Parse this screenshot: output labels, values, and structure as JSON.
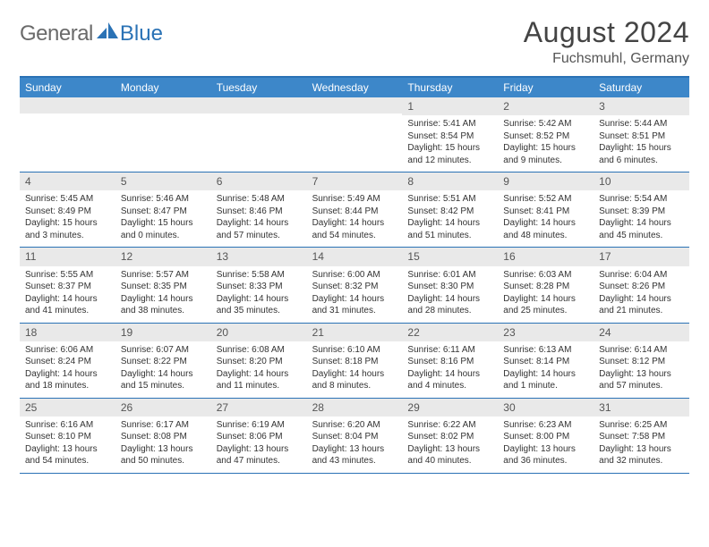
{
  "brand": {
    "part1": "General",
    "part2": "Blue"
  },
  "title": "August 2024",
  "location": "Fuchsmuhl, Germany",
  "day_names": [
    "Sunday",
    "Monday",
    "Tuesday",
    "Wednesday",
    "Thursday",
    "Friday",
    "Saturday"
  ],
  "colors": {
    "header_bg": "#3d87c9",
    "border": "#2a72b5",
    "daynum_bg": "#e9e9e9",
    "text": "#333333",
    "logo_gray": "#6a6a6a",
    "logo_blue": "#2a72b5"
  },
  "weeks": [
    [
      {
        "day": "",
        "sunrise": "",
        "sunset": "",
        "daylight": ""
      },
      {
        "day": "",
        "sunrise": "",
        "sunset": "",
        "daylight": ""
      },
      {
        "day": "",
        "sunrise": "",
        "sunset": "",
        "daylight": ""
      },
      {
        "day": "",
        "sunrise": "",
        "sunset": "",
        "daylight": ""
      },
      {
        "day": "1",
        "sunrise": "Sunrise: 5:41 AM",
        "sunset": "Sunset: 8:54 PM",
        "daylight": "Daylight: 15 hours and 12 minutes."
      },
      {
        "day": "2",
        "sunrise": "Sunrise: 5:42 AM",
        "sunset": "Sunset: 8:52 PM",
        "daylight": "Daylight: 15 hours and 9 minutes."
      },
      {
        "day": "3",
        "sunrise": "Sunrise: 5:44 AM",
        "sunset": "Sunset: 8:51 PM",
        "daylight": "Daylight: 15 hours and 6 minutes."
      }
    ],
    [
      {
        "day": "4",
        "sunrise": "Sunrise: 5:45 AM",
        "sunset": "Sunset: 8:49 PM",
        "daylight": "Daylight: 15 hours and 3 minutes."
      },
      {
        "day": "5",
        "sunrise": "Sunrise: 5:46 AM",
        "sunset": "Sunset: 8:47 PM",
        "daylight": "Daylight: 15 hours and 0 minutes."
      },
      {
        "day": "6",
        "sunrise": "Sunrise: 5:48 AM",
        "sunset": "Sunset: 8:46 PM",
        "daylight": "Daylight: 14 hours and 57 minutes."
      },
      {
        "day": "7",
        "sunrise": "Sunrise: 5:49 AM",
        "sunset": "Sunset: 8:44 PM",
        "daylight": "Daylight: 14 hours and 54 minutes."
      },
      {
        "day": "8",
        "sunrise": "Sunrise: 5:51 AM",
        "sunset": "Sunset: 8:42 PM",
        "daylight": "Daylight: 14 hours and 51 minutes."
      },
      {
        "day": "9",
        "sunrise": "Sunrise: 5:52 AM",
        "sunset": "Sunset: 8:41 PM",
        "daylight": "Daylight: 14 hours and 48 minutes."
      },
      {
        "day": "10",
        "sunrise": "Sunrise: 5:54 AM",
        "sunset": "Sunset: 8:39 PM",
        "daylight": "Daylight: 14 hours and 45 minutes."
      }
    ],
    [
      {
        "day": "11",
        "sunrise": "Sunrise: 5:55 AM",
        "sunset": "Sunset: 8:37 PM",
        "daylight": "Daylight: 14 hours and 41 minutes."
      },
      {
        "day": "12",
        "sunrise": "Sunrise: 5:57 AM",
        "sunset": "Sunset: 8:35 PM",
        "daylight": "Daylight: 14 hours and 38 minutes."
      },
      {
        "day": "13",
        "sunrise": "Sunrise: 5:58 AM",
        "sunset": "Sunset: 8:33 PM",
        "daylight": "Daylight: 14 hours and 35 minutes."
      },
      {
        "day": "14",
        "sunrise": "Sunrise: 6:00 AM",
        "sunset": "Sunset: 8:32 PM",
        "daylight": "Daylight: 14 hours and 31 minutes."
      },
      {
        "day": "15",
        "sunrise": "Sunrise: 6:01 AM",
        "sunset": "Sunset: 8:30 PM",
        "daylight": "Daylight: 14 hours and 28 minutes."
      },
      {
        "day": "16",
        "sunrise": "Sunrise: 6:03 AM",
        "sunset": "Sunset: 8:28 PM",
        "daylight": "Daylight: 14 hours and 25 minutes."
      },
      {
        "day": "17",
        "sunrise": "Sunrise: 6:04 AM",
        "sunset": "Sunset: 8:26 PM",
        "daylight": "Daylight: 14 hours and 21 minutes."
      }
    ],
    [
      {
        "day": "18",
        "sunrise": "Sunrise: 6:06 AM",
        "sunset": "Sunset: 8:24 PM",
        "daylight": "Daylight: 14 hours and 18 minutes."
      },
      {
        "day": "19",
        "sunrise": "Sunrise: 6:07 AM",
        "sunset": "Sunset: 8:22 PM",
        "daylight": "Daylight: 14 hours and 15 minutes."
      },
      {
        "day": "20",
        "sunrise": "Sunrise: 6:08 AM",
        "sunset": "Sunset: 8:20 PM",
        "daylight": "Daylight: 14 hours and 11 minutes."
      },
      {
        "day": "21",
        "sunrise": "Sunrise: 6:10 AM",
        "sunset": "Sunset: 8:18 PM",
        "daylight": "Daylight: 14 hours and 8 minutes."
      },
      {
        "day": "22",
        "sunrise": "Sunrise: 6:11 AM",
        "sunset": "Sunset: 8:16 PM",
        "daylight": "Daylight: 14 hours and 4 minutes."
      },
      {
        "day": "23",
        "sunrise": "Sunrise: 6:13 AM",
        "sunset": "Sunset: 8:14 PM",
        "daylight": "Daylight: 14 hours and 1 minute."
      },
      {
        "day": "24",
        "sunrise": "Sunrise: 6:14 AM",
        "sunset": "Sunset: 8:12 PM",
        "daylight": "Daylight: 13 hours and 57 minutes."
      }
    ],
    [
      {
        "day": "25",
        "sunrise": "Sunrise: 6:16 AM",
        "sunset": "Sunset: 8:10 PM",
        "daylight": "Daylight: 13 hours and 54 minutes."
      },
      {
        "day": "26",
        "sunrise": "Sunrise: 6:17 AM",
        "sunset": "Sunset: 8:08 PM",
        "daylight": "Daylight: 13 hours and 50 minutes."
      },
      {
        "day": "27",
        "sunrise": "Sunrise: 6:19 AM",
        "sunset": "Sunset: 8:06 PM",
        "daylight": "Daylight: 13 hours and 47 minutes."
      },
      {
        "day": "28",
        "sunrise": "Sunrise: 6:20 AM",
        "sunset": "Sunset: 8:04 PM",
        "daylight": "Daylight: 13 hours and 43 minutes."
      },
      {
        "day": "29",
        "sunrise": "Sunrise: 6:22 AM",
        "sunset": "Sunset: 8:02 PM",
        "daylight": "Daylight: 13 hours and 40 minutes."
      },
      {
        "day": "30",
        "sunrise": "Sunrise: 6:23 AM",
        "sunset": "Sunset: 8:00 PM",
        "daylight": "Daylight: 13 hours and 36 minutes."
      },
      {
        "day": "31",
        "sunrise": "Sunrise: 6:25 AM",
        "sunset": "Sunset: 7:58 PM",
        "daylight": "Daylight: 13 hours and 32 minutes."
      }
    ]
  ]
}
